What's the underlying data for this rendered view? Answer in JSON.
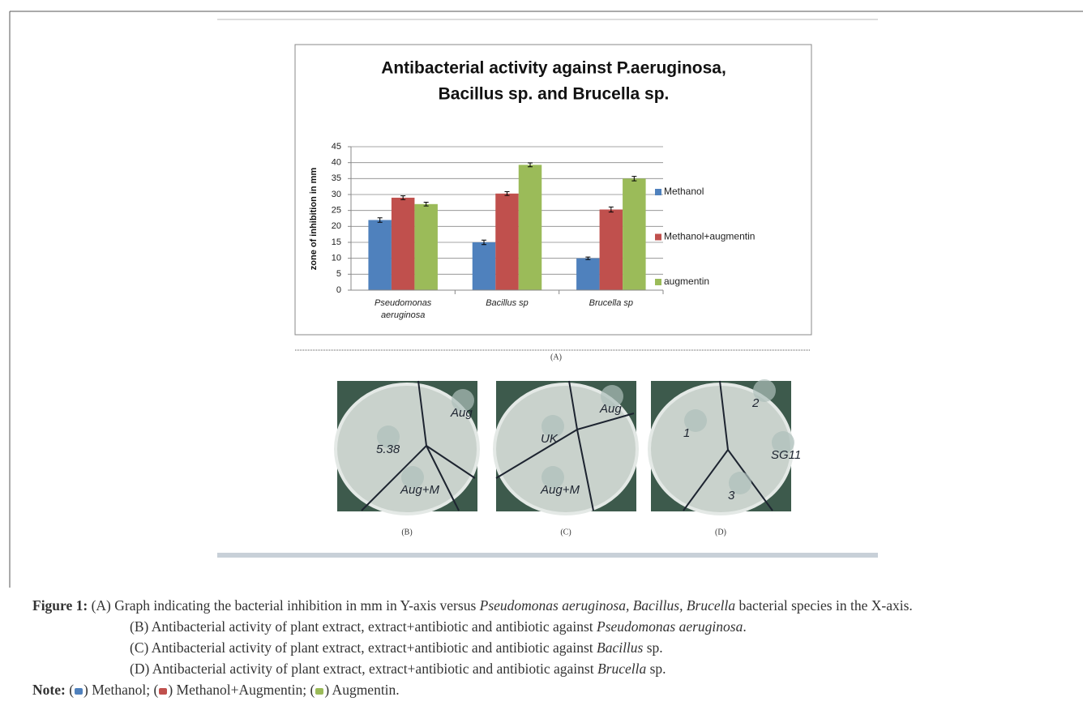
{
  "chart_data": {
    "type": "bar",
    "title": [
      "Antibacterial activity against P.aeruginosa,",
      "Bacillus sp. and Brucella sp."
    ],
    "y_label": "zone of inhibition in mm",
    "categories": [
      "Pseudomonas aeruginosa",
      "Bacillus sp",
      "Brucella sp"
    ],
    "series": [
      {
        "name": "Methanol",
        "color": "#4f81bd",
        "values": [
          22,
          15,
          10
        ],
        "errors": [
          0.7,
          0.7,
          0.4
        ]
      },
      {
        "name": "Methanol+augmentin",
        "color": "#c0504d",
        "values": [
          29,
          30.3,
          25.3
        ],
        "errors": [
          0.6,
          0.6,
          0.8
        ]
      },
      {
        "name": "augmentin",
        "color": "#9bbb59",
        "values": [
          27,
          39.3,
          35
        ],
        "errors": [
          0.6,
          0.6,
          0.7
        ]
      }
    ],
    "ylim": [
      0,
      45
    ],
    "yticks": [
      0,
      5,
      10,
      15,
      20,
      25,
      30,
      35,
      40,
      45
    ],
    "grid": true,
    "legend": "right",
    "panel_label": "(A)"
  },
  "photos": [
    {
      "caption": "(B)",
      "labels": [
        "Aug",
        "5.38",
        "Aug+M"
      ]
    },
    {
      "caption": "(C)",
      "labels": [
        "Aug",
        "UK",
        "Aug+M"
      ]
    },
    {
      "caption": "(D)",
      "labels": [
        "2",
        "1",
        "SG11",
        "3"
      ]
    }
  ],
  "caption": {
    "label": "Figure 1:",
    "lines": [
      [
        "(A) Graph indicating the bacterial inhibition in mm in Y-axis versus ",
        "Pseudomonas aeruginosa, Bacillus, Brucella",
        " bacterial species in the X-axis."
      ],
      [
        "(B) Antibacterial activity of plant extract, extract+antibiotic and antibiotic against ",
        "Pseudomonas aeruginosa",
        "."
      ],
      [
        "(C) Antibacterial activity of plant extract, extract+antibiotic and antibiotic against ",
        "Bacillus",
        " sp."
      ],
      [
        "(D) Antibacterial activity of plant extract, extract+antibiotic and antibiotic against ",
        "Brucella",
        " sp."
      ]
    ],
    "note_label": "Note:",
    "note": [
      "(",
      ") Methanol; (",
      ") Methanol+Augmentin; (",
      ") Augmentin."
    ]
  }
}
